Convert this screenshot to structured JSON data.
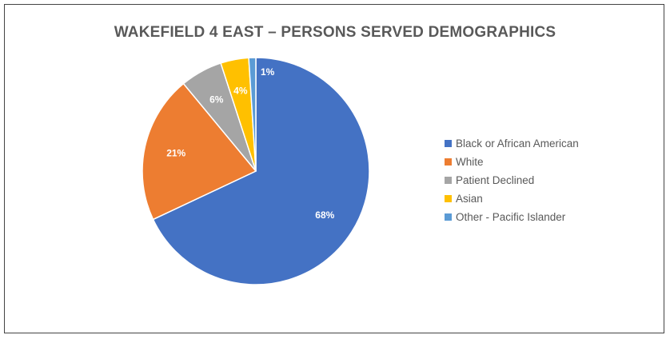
{
  "chart_data": {
    "type": "pie",
    "title": "WAKEFIELD 4 EAST – PERSONS SERVED DEMOGRAPHICS",
    "start_angle": "12 o'clock",
    "direction": "clockwise",
    "legend_position": "right",
    "slices": [
      {
        "name": "Black or African American",
        "value": 68,
        "label": "68%",
        "color": "#4472C4"
      },
      {
        "name": "White",
        "value": 21,
        "label": "21%",
        "color": "#ED7D31"
      },
      {
        "name": "Patient Declined",
        "value": 6,
        "label": "6%",
        "color": "#A5A5A5"
      },
      {
        "name": "Asian",
        "value": 4,
        "label": "4%",
        "color": "#FFC000"
      },
      {
        "name": "Other - Pacific Islander",
        "value": 1,
        "label": "1%",
        "color": "#5B9BD5"
      }
    ]
  }
}
